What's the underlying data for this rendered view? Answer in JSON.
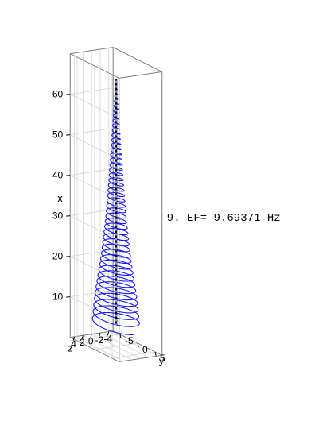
{
  "chart_data": {
    "type": "line",
    "projection": "3d",
    "xlabel": "x",
    "ylabel": "y",
    "zlabel": "z",
    "x_ticks": [
      10,
      20,
      30,
      40,
      50,
      60
    ],
    "y_ticks": [
      5,
      0,
      -5
    ],
    "z_ticks": [
      4,
      2,
      0,
      -2,
      -4
    ],
    "annotation": "9. EF= 9.69371 Hz",
    "grid": true,
    "series": [
      {
        "style": "helical orbit, amplitude decreasing with x",
        "color": "#1a1aff",
        "x_range": [
          5,
          66
        ],
        "envelope": [
          {
            "x": 5,
            "amplitude": 5.2
          },
          {
            "x": 12,
            "amplitude": 4.6
          },
          {
            "x": 22,
            "amplitude": 3.2
          },
          {
            "x": 32,
            "amplitude": 2.2
          },
          {
            "x": 42,
            "amplitude": 1.5
          },
          {
            "x": 52,
            "amplitude": 0.9
          },
          {
            "x": 60,
            "amplitude": 0.4
          },
          {
            "x": 66,
            "amplitude": 0.1
          }
        ]
      },
      {
        "style": "dashed center line",
        "color": "#000033",
        "x_range": [
          5,
          66
        ],
        "y": 0,
        "z": 0
      }
    ]
  }
}
